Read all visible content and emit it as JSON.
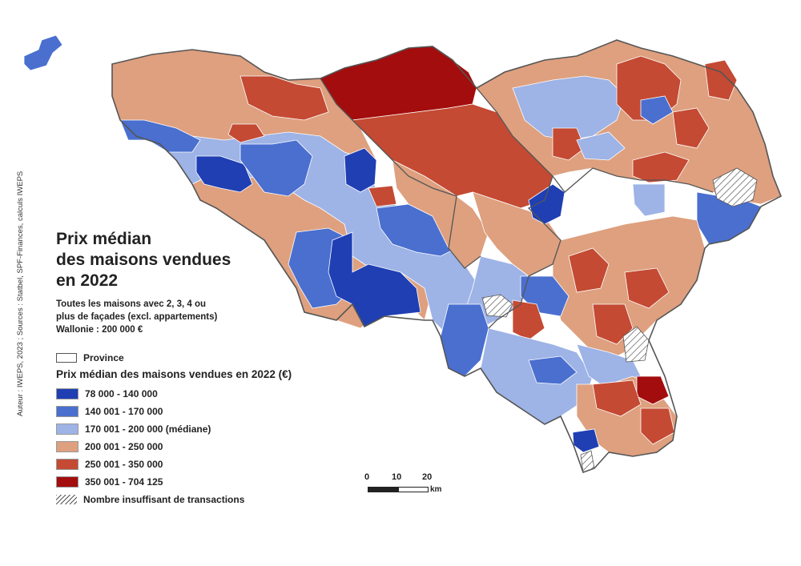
{
  "title": [
    "Prix médian",
    "des maisons vendues",
    "en 2022"
  ],
  "subtitle_lines": [
    "Toutes les maisons avec 2, 3, 4 ou",
    "plus de façades (excl. appartements)",
    "Wallonie : 200 000 €"
  ],
  "credit": "Auteur : IWEPS, 2023 ; Sources : Statbel, SPF-Finances, calculs IWEPS",
  "legend": {
    "province_label": "Province",
    "heading": "Prix médian des maisons vendues en 2022 (€)",
    "classes": [
      {
        "label": "78 000 - 140 000",
        "color": "#1f3fb3"
      },
      {
        "label": "140 001 - 170 000",
        "color": "#4a6fcf"
      },
      {
        "label": "170 001 - 200 000 (médiane)",
        "color": "#9eb3e6"
      },
      {
        "label": "200 001 - 250 000",
        "color": "#dea07f"
      },
      {
        "label": "250 001 - 350 000",
        "color": "#c44a33"
      },
      {
        "label": "350 001 - 704 125",
        "color": "#a30d0d"
      }
    ],
    "insufficient_label": "Nombre insuffisant de transactions"
  },
  "scale": {
    "ticks": [
      "0",
      "10",
      "20"
    ],
    "unit": "km"
  }
}
